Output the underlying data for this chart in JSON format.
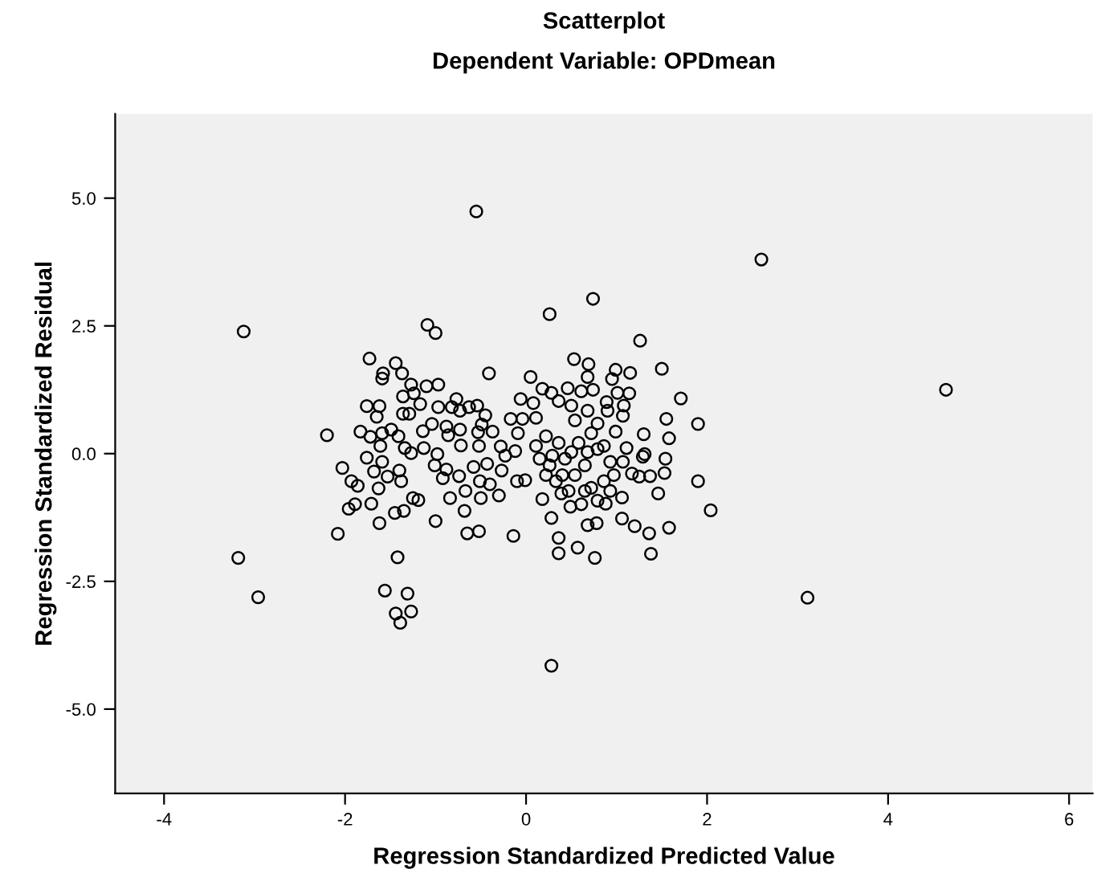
{
  "chart_data": {
    "type": "scatter",
    "title": "Scatterplot",
    "subtitle": "Dependent Variable: OPDmean",
    "xlabel": "Regression Standardized Predicted Value",
    "ylabel": "Regression Standardized Residual",
    "xlim": [
      -4.54,
      6.26
    ],
    "ylim": [
      -6.65,
      6.65
    ],
    "xticks": [
      -4,
      -2,
      0,
      2,
      4,
      6
    ],
    "yticks": [
      {
        "value": -5,
        "label": "-5.0"
      },
      -2.5,
      {
        "value": 0,
        "label": "0.0"
      },
      2.5,
      {
        "value": 5,
        "label": "5.0"
      }
    ],
    "grid": false,
    "marker": "circle",
    "legend": false,
    "series": [
      {
        "color": "#000000",
        "x": [
          -0.55,
          2.6,
          0.74,
          0.26,
          -3.12,
          -1.09,
          -1.0,
          1.26,
          4.64,
          -3.18,
          -2.96,
          3.11,
          0.28,
          -1.42,
          -1.56,
          -1.31,
          -1.44,
          -1.27,
          -1.39,
          -2.2,
          -2.08,
          2.04,
          1.9,
          1.9,
          1.71,
          1.5,
          1.38,
          1.58,
          1.36,
          0.76,
          0.36,
          0.57,
          0.36,
          0.28,
          -0.14,
          -0.52,
          -0.65,
          -0.68,
          -1.0,
          -1.62,
          -1.96,
          -1.89,
          -1.71,
          -1.45,
          -1.35,
          -1.25,
          -1.19,
          -0.84,
          -0.5,
          -0.3,
          -0.67,
          -1.63,
          -1.86,
          -1.93,
          -2.03,
          -1.76,
          -1.73,
          -1.44,
          -1.58,
          -1.59,
          -1.37,
          -0.41,
          0.05,
          0.53,
          0.69,
          0.68,
          0.99,
          1.15,
          0.95,
          0.46,
          0.18,
          0.28,
          -0.06,
          0.08,
          0.36,
          0.5,
          0.74,
          1.01,
          1.14,
          0.89,
          1.08,
          1.07,
          1.55,
          1.58,
          1.3,
          1.31,
          1.29,
          1.11,
          1.54,
          1.53,
          1.37,
          1.25,
          1.17,
          1.46,
          1.06,
          1.06,
          1.2,
          0.78,
          0.68,
          0.49,
          0.61,
          0.18,
          0.39,
          -0.01,
          -0.1,
          -0.27,
          -0.23,
          -0.28,
          -0.37,
          -0.53,
          -0.63,
          -0.54,
          -0.45,
          -0.17,
          -0.04,
          0.11,
          -0.09,
          -0.12,
          -0.52,
          -0.72,
          -0.73,
          -0.86,
          -0.88,
          -0.77,
          -0.82,
          -0.97,
          -0.97,
          -1.1,
          -1.27,
          -1.36,
          -1.24,
          -1.17,
          -1.29,
          -1.36,
          -1.14,
          -1.04,
          -1.76,
          -1.62,
          -1.65,
          -1.83,
          -1.72,
          -1.59,
          -1.49,
          -1.41,
          -1.34,
          -1.27,
          -1.13,
          -0.98,
          -1.01,
          -0.92,
          -0.88,
          -0.74,
          -0.58,
          -0.51,
          -0.4,
          -0.43,
          -1.59,
          -1.68,
          -1.53,
          -1.4,
          -1.38,
          -1.61,
          -0.73,
          -0.49,
          0.22,
          0.36,
          0.29,
          0.43,
          0.26,
          0.4,
          0.54,
          0.65,
          0.79,
          0.86,
          0.72,
          0.54,
          0.79,
          0.93,
          0.86,
          0.72,
          0.93,
          0.79,
          0.88,
          0.65,
          0.5,
          0.15,
          0.11,
          0.58,
          0.68,
          0.99,
          0.9,
          0.68,
          0.61,
          1.07,
          0.97,
          0.47,
          0.33,
          0.22
        ],
        "values": [
          4.74,
          3.8,
          3.03,
          2.73,
          2.39,
          2.52,
          2.36,
          2.21,
          1.25,
          -2.04,
          -2.81,
          -2.82,
          -4.15,
          -2.03,
          -2.68,
          -2.74,
          -3.13,
          -3.09,
          -3.31,
          0.36,
          -1.57,
          -1.11,
          -0.54,
          0.58,
          1.08,
          1.66,
          -1.96,
          -1.45,
          -1.56,
          -2.04,
          -1.95,
          -1.84,
          -1.65,
          -1.26,
          -1.61,
          -1.52,
          -1.56,
          -1.12,
          -1.32,
          -1.36,
          -1.08,
          -0.99,
          -0.98,
          -1.16,
          -1.12,
          -0.87,
          -0.91,
          -0.87,
          -0.87,
          -0.82,
          -0.73,
          -0.68,
          -0.63,
          -0.54,
          -0.28,
          -0.08,
          1.86,
          1.77,
          1.57,
          1.47,
          1.57,
          1.57,
          1.5,
          1.85,
          1.75,
          1.5,
          1.64,
          1.58,
          1.46,
          1.28,
          1.27,
          1.19,
          1.07,
          0.99,
          1.03,
          0.94,
          1.25,
          1.19,
          1.18,
          1.01,
          0.94,
          0.74,
          0.68,
          0.3,
          0.38,
          -0.01,
          -0.06,
          0.11,
          -0.1,
          -0.38,
          -0.44,
          -0.45,
          -0.39,
          -0.78,
          -0.86,
          -1.27,
          -1.42,
          -1.36,
          -1.4,
          -1.04,
          -0.99,
          -0.89,
          -0.78,
          -0.52,
          -0.54,
          -0.33,
          -0.04,
          0.14,
          0.43,
          0.42,
          0.91,
          0.94,
          0.75,
          0.68,
          0.68,
          0.7,
          0.4,
          0.05,
          0.15,
          0.16,
          0.47,
          0.36,
          0.53,
          1.07,
          0.91,
          0.91,
          1.35,
          1.32,
          1.35,
          1.12,
          1.18,
          0.97,
          0.78,
          0.78,
          0.44,
          0.58,
          0.93,
          0.93,
          0.72,
          0.43,
          0.33,
          0.4,
          0.47,
          0.34,
          0.11,
          0.01,
          0.11,
          -0.01,
          -0.23,
          -0.48,
          -0.31,
          -0.44,
          -0.26,
          -0.54,
          -0.6,
          -0.2,
          -0.16,
          -0.35,
          -0.45,
          -0.33,
          -0.54,
          0.15,
          0.84,
          0.57,
          0.34,
          0.21,
          -0.04,
          -0.1,
          -0.23,
          -0.42,
          -0.42,
          -0.23,
          0.09,
          0.15,
          0.4,
          0.65,
          0.59,
          -0.16,
          -0.54,
          -0.67,
          -0.73,
          -0.92,
          -0.98,
          -0.73,
          0.03,
          -0.1,
          0.15,
          0.21,
          0.03,
          0.43,
          0.84,
          0.84,
          1.22,
          -0.16,
          -0.42,
          -0.73,
          -0.54,
          -0.42
        ]
      }
    ]
  }
}
